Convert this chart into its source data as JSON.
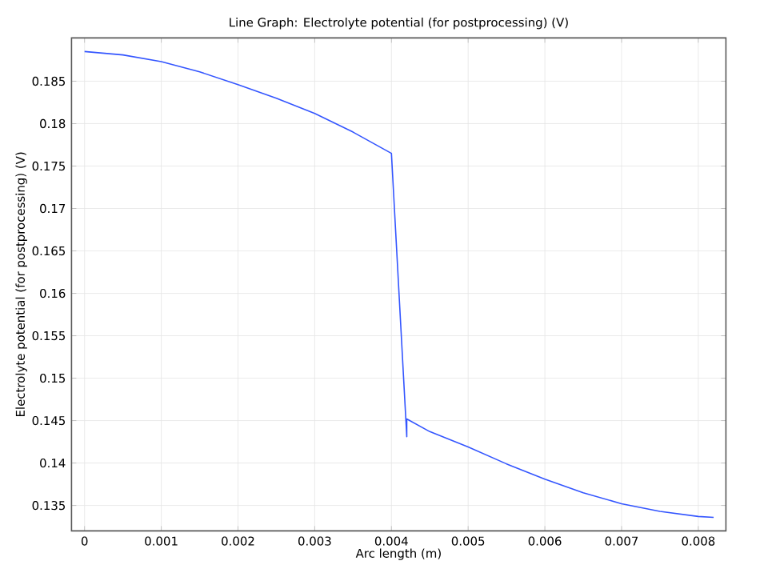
{
  "chart_data": {
    "type": "line",
    "title": "Line Graph: Electrolyte potential (for postprocessing) (V)",
    "xlabel": "Arc length (m)",
    "ylabel": "Electrolyte potential (for postprocessing) (V)",
    "x": [
      0,
      0.0005,
      0.001,
      0.0015,
      0.002,
      0.0025,
      0.003,
      0.0035,
      0.004,
      0.0042,
      0.0042,
      0.0045,
      0.005,
      0.0055,
      0.006,
      0.0065,
      0.007,
      0.0075,
      0.008,
      0.0082
    ],
    "series": [
      {
        "color": "#3355ff",
        "values": [
          0.1885,
          0.1881,
          0.1873,
          0.1861,
          0.1846,
          0.183,
          0.1812,
          0.179,
          0.1765,
          0.1431,
          0.1452,
          0.1437,
          0.1419,
          0.1399,
          0.1381,
          0.1365,
          0.1352,
          0.1343,
          0.1337,
          0.1336
        ]
      }
    ],
    "xlim": [
      -0.00017,
      0.00836
    ],
    "ylim": [
      0.132,
      0.1901
    ],
    "xticks": [
      0,
      0.001,
      0.002,
      0.003,
      0.004,
      0.005,
      0.006,
      0.007,
      0.008
    ],
    "yticks": [
      0.135,
      0.14,
      0.145,
      0.15,
      0.155,
      0.16,
      0.165,
      0.17,
      0.175,
      0.18,
      0.185
    ],
    "grid": true,
    "marker": "none",
    "line_style": "solid"
  }
}
